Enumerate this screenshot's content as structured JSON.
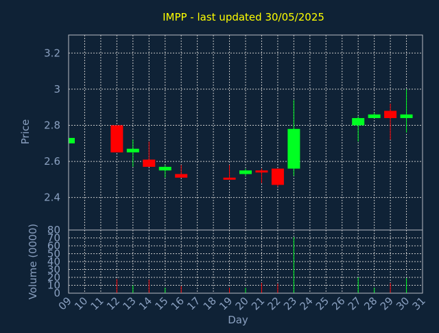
{
  "chart_data": {
    "type": "candlestick",
    "title": "IMPP - last updated 30/05/2025",
    "xlabel": "Day",
    "ylabel": "Price",
    "volume_ylabel": "Volume (0000)",
    "grid": true,
    "ylim": [
      2.22,
      3.3
    ],
    "volume_ylim": [
      0,
      80
    ],
    "x_ticks": [
      "09",
      "10",
      "11",
      "12",
      "13",
      "14",
      "15",
      "16",
      "17",
      "18",
      "19",
      "20",
      "21",
      "22",
      "23",
      "24",
      "25",
      "26",
      "27",
      "28",
      "29",
      "30",
      "31"
    ],
    "y_ticks": [
      2.4,
      2.6,
      2.8,
      3,
      3.2
    ],
    "volume_ticks": [
      0,
      10,
      20,
      30,
      40,
      50,
      60,
      70,
      80
    ],
    "candles": [
      {
        "day": "09",
        "open": 2.7,
        "high": 2.74,
        "low": 2.7,
        "close": 2.73
      },
      {
        "day": "12",
        "open": 2.8,
        "high": 2.8,
        "low": 2.65,
        "close": 2.65
      },
      {
        "day": "13",
        "open": 2.65,
        "high": 2.72,
        "low": 2.57,
        "close": 2.67
      },
      {
        "day": "14",
        "open": 2.61,
        "high": 2.71,
        "low": 2.57,
        "close": 2.57
      },
      {
        "day": "15",
        "open": 2.55,
        "high": 2.58,
        "low": 2.51,
        "close": 2.57
      },
      {
        "day": "16",
        "open": 2.53,
        "high": 2.58,
        "low": 2.51,
        "close": 2.51
      },
      {
        "day": "19",
        "open": 2.51,
        "high": 2.58,
        "low": 2.5,
        "close": 2.5
      },
      {
        "day": "20",
        "open": 2.53,
        "high": 2.56,
        "low": 2.52,
        "close": 2.55
      },
      {
        "day": "21",
        "open": 2.55,
        "high": 2.56,
        "low": 2.48,
        "close": 2.54
      },
      {
        "day": "22",
        "open": 2.56,
        "high": 2.56,
        "low": 2.46,
        "close": 2.47
      },
      {
        "day": "23",
        "open": 2.56,
        "high": 2.94,
        "low": 2.52,
        "close": 2.78
      },
      {
        "day": "27",
        "open": 2.8,
        "high": 2.85,
        "low": 2.71,
        "close": 2.84
      },
      {
        "day": "28",
        "open": 2.84,
        "high": 2.87,
        "low": 2.84,
        "close": 2.86
      },
      {
        "day": "29",
        "open": 2.88,
        "high": 2.92,
        "low": 2.72,
        "close": 2.84
      },
      {
        "day": "30",
        "open": 2.84,
        "high": 3.0,
        "low": 2.76,
        "close": 2.86
      }
    ],
    "volume": [
      {
        "day": "12",
        "value": 18,
        "color": "red"
      },
      {
        "day": "13",
        "value": 10,
        "color": "green"
      },
      {
        "day": "14",
        "value": 17,
        "color": "red"
      },
      {
        "day": "15",
        "value": 7,
        "color": "green"
      },
      {
        "day": "16",
        "value": 9,
        "color": "red"
      },
      {
        "day": "19",
        "value": 7,
        "color": "red"
      },
      {
        "day": "20",
        "value": 7,
        "color": "green"
      },
      {
        "day": "21",
        "value": 13,
        "color": "red"
      },
      {
        "day": "22",
        "value": 12,
        "color": "red"
      },
      {
        "day": "23",
        "value": 71,
        "color": "green"
      },
      {
        "day": "27",
        "value": 20,
        "color": "green"
      },
      {
        "day": "28",
        "value": 7,
        "color": "green"
      },
      {
        "day": "29",
        "value": 13,
        "color": "red"
      },
      {
        "day": "30",
        "value": 19,
        "color": "green"
      }
    ],
    "colors": {
      "background": "#0f2236",
      "axis_text": "#8aa0c0",
      "title": "#ffff00",
      "grid": "#c8c8c8",
      "up": "#00ff22",
      "down": "#ff0000"
    }
  }
}
